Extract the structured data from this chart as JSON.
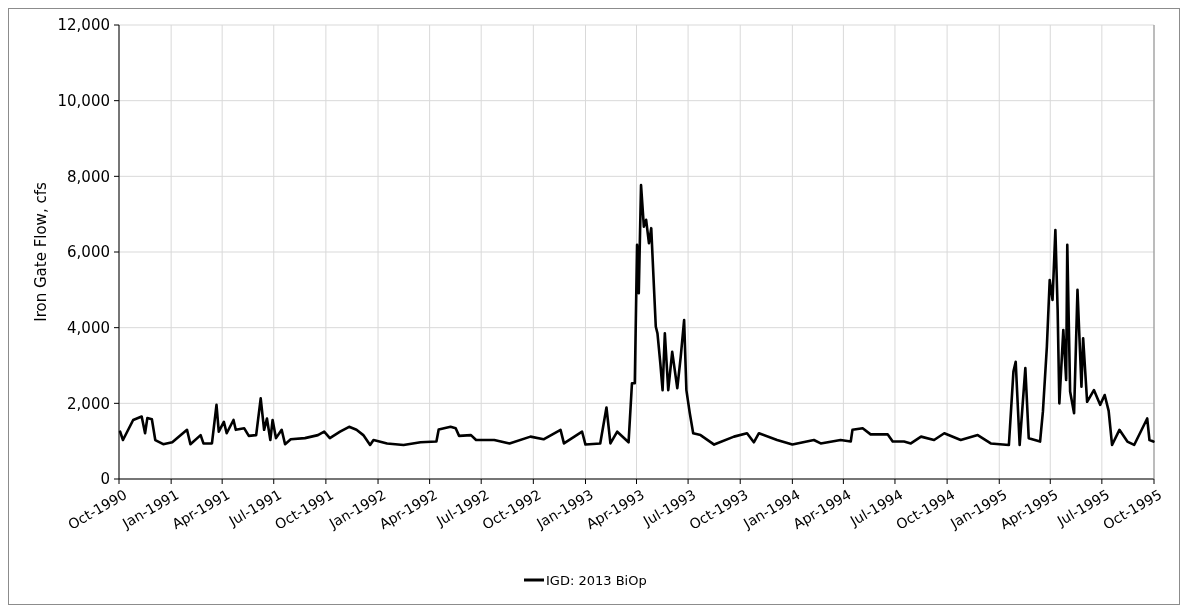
{
  "chart_data": {
    "type": "line",
    "ylabel": "Iron Gate Flow, cfs",
    "grid": true,
    "legend": "bottom",
    "xlim": [
      "1990-10-01",
      "1995-10-01"
    ],
    "xticks": [
      {
        "value": "1990-10-01",
        "label": "Oct-1990"
      },
      {
        "value": "1991-01-01",
        "label": "Jan-1991"
      },
      {
        "value": "1991-04-01",
        "label": "Apr-1991"
      },
      {
        "value": "1991-07-01",
        "label": "Jul-1991"
      },
      {
        "value": "1991-10-01",
        "label": "Oct-1991"
      },
      {
        "value": "1992-01-01",
        "label": "Jan-1992"
      },
      {
        "value": "1992-04-01",
        "label": "Apr-1992"
      },
      {
        "value": "1992-07-01",
        "label": "Jul-1992"
      },
      {
        "value": "1992-10-01",
        "label": "Oct-1992"
      },
      {
        "value": "1993-01-01",
        "label": "Jan-1993"
      },
      {
        "value": "1993-04-01",
        "label": "Apr-1993"
      },
      {
        "value": "1993-07-01",
        "label": "Jul-1993"
      },
      {
        "value": "1993-10-01",
        "label": "Oct-1993"
      },
      {
        "value": "1994-01-01",
        "label": "Jan-1994"
      },
      {
        "value": "1994-04-01",
        "label": "Apr-1994"
      },
      {
        "value": "1994-07-01",
        "label": "Jul-1994"
      },
      {
        "value": "1994-10-01",
        "label": "Oct-1994"
      },
      {
        "value": "1995-01-01",
        "label": "Jan-1995"
      },
      {
        "value": "1995-04-01",
        "label": "Apr-1995"
      },
      {
        "value": "1995-07-01",
        "label": "Jul-1995"
      },
      {
        "value": "1995-10-01",
        "label": "Oct-1995"
      }
    ],
    "ylim": [
      0,
      12000
    ],
    "yticks": [
      0,
      {
        "value": 2000,
        "label": "2,000"
      },
      {
        "value": 4000,
        "label": "4,000"
      },
      {
        "value": 6000,
        "label": "6,000"
      },
      {
        "value": 8000,
        "label": "8,000"
      },
      {
        "value": 10000,
        "label": "10,000"
      },
      {
        "value": 12000,
        "label": "12,000"
      }
    ],
    "series": [
      {
        "name": "IGD: 2013 BiOp",
        "color": "#000000",
        "x": [
          "1990-10-03",
          "1990-10-08",
          "1990-10-26",
          "1990-11-10",
          "1990-11-16",
          "1990-11-20",
          "1990-11-28",
          "1990-12-04",
          "1990-12-18",
          "1991-01-03",
          "1991-01-29",
          "1991-02-04",
          "1991-02-22",
          "1991-02-27",
          "1991-03-14",
          "1991-03-22",
          "1991-03-26",
          "1991-04-04",
          "1991-04-09",
          "1991-04-21",
          "1991-04-25",
          "1991-05-10",
          "1991-05-18",
          "1991-05-31",
          "1991-06-08",
          "1991-06-14",
          "1991-06-19",
          "1991-06-25",
          "1991-06-29",
          "1991-07-05",
          "1991-07-15",
          "1991-07-21",
          "1991-07-31",
          "1991-08-25",
          "1991-09-17",
          "1991-09-28",
          "1991-10-08",
          "1991-10-26",
          "1991-11-11",
          "1991-11-24",
          "1991-12-06",
          "1991-12-18",
          "1991-12-24",
          "1992-01-17",
          "1992-02-15",
          "1992-03-16",
          "1992-04-13",
          "1992-04-17",
          "1992-05-08",
          "1992-05-17",
          "1992-05-23",
          "1992-06-13",
          "1992-06-22",
          "1992-07-24",
          "1992-08-20",
          "1992-09-26",
          "1992-10-19",
          "1992-11-18",
          "1992-11-24",
          "1992-12-26",
          "1993-01-01",
          "1993-01-27",
          "1993-02-07",
          "1993-02-14",
          "1993-02-26",
          "1993-03-18",
          "1993-03-24",
          "1993-03-29",
          "1993-04-02",
          "1993-04-05",
          "1993-04-09",
          "1993-04-14",
          "1993-04-18",
          "1993-04-23",
          "1993-04-27",
          "1993-05-02",
          "1993-05-05",
          "1993-05-08",
          "1993-05-13",
          "1993-05-17",
          "1993-05-21",
          "1993-05-27",
          "1993-06-03",
          "1993-06-12",
          "1993-06-18",
          "1993-06-24",
          "1993-06-28",
          "1993-07-04",
          "1993-07-10",
          "1993-07-23",
          "1993-08-16",
          "1993-09-20",
          "1993-10-13",
          "1993-10-25",
          "1993-11-03",
          "1993-12-05",
          "1994-01-01",
          "1994-02-08",
          "1994-02-20",
          "1994-03-27",
          "1994-04-14",
          "1994-04-17",
          "1994-05-05",
          "1994-05-19",
          "1994-06-18",
          "1994-06-27",
          "1994-07-17",
          "1994-07-29",
          "1994-08-16",
          "1994-09-08",
          "1994-09-26",
          "1994-10-25",
          "1994-11-24",
          "1994-12-17",
          "1995-01-18",
          "1995-01-26",
          "1995-01-30",
          "1995-02-06",
          "1995-02-16",
          "1995-02-22",
          "1995-03-14",
          "1995-03-19",
          "1995-03-26",
          "1995-03-31",
          "1995-04-05",
          "1995-04-10",
          "1995-04-14",
          "1995-04-17",
          "1995-04-24",
          "1995-04-29",
          "1995-05-01",
          "1995-05-06",
          "1995-05-13",
          "1995-05-19",
          "1995-05-26",
          "1995-05-29",
          "1995-06-05",
          "1995-06-17",
          "1995-06-28",
          "1995-07-06",
          "1995-07-13",
          "1995-07-19",
          "1995-08-01",
          "1995-08-15",
          "1995-08-27",
          "1995-09-19",
          "1995-09-23",
          "1995-09-30"
        ],
        "values": [
          1250,
          1030,
          1560,
          1650,
          1210,
          1610,
          1580,
          1030,
          920,
          970,
          1300,
          920,
          1160,
          940,
          940,
          1960,
          1250,
          1510,
          1210,
          1560,
          1300,
          1340,
          1140,
          1160,
          2130,
          1300,
          1600,
          1030,
          1560,
          1080,
          1300,
          920,
          1050,
          1080,
          1160,
          1250,
          1080,
          1250,
          1380,
          1300,
          1160,
          900,
          1030,
          940,
          900,
          970,
          990,
          1310,
          1380,
          1340,
          1140,
          1160,
          1030,
          1030,
          940,
          1120,
          1050,
          1300,
          940,
          1250,
          910,
          940,
          1890,
          940,
          1250,
          970,
          2530,
          2530,
          6190,
          4910,
          7770,
          6670,
          6850,
          6230,
          6630,
          5000,
          4030,
          3850,
          3060,
          2350,
          3850,
          2350,
          3360,
          2400,
          3230,
          4200,
          2350,
          1740,
          1210,
          1160,
          910,
          1120,
          1210,
          970,
          1210,
          1030,
          910,
          1030,
          940,
          1030,
          990,
          1300,
          1340,
          1180,
          1180,
          990,
          990,
          940,
          1120,
          1030,
          1210,
          1030,
          1160,
          940,
          900,
          2840,
          3100,
          900,
          2930,
          1080,
          990,
          1780,
          3500,
          5260,
          4730,
          6580,
          4470,
          2000,
          3940,
          2620,
          6190,
          2310,
          1740,
          5000,
          2440,
          3720,
          2040,
          2350,
          1960,
          2220,
          1800,
          900,
          1300,
          990,
          900,
          1600,
          1030,
          990
        ]
      }
    ]
  }
}
